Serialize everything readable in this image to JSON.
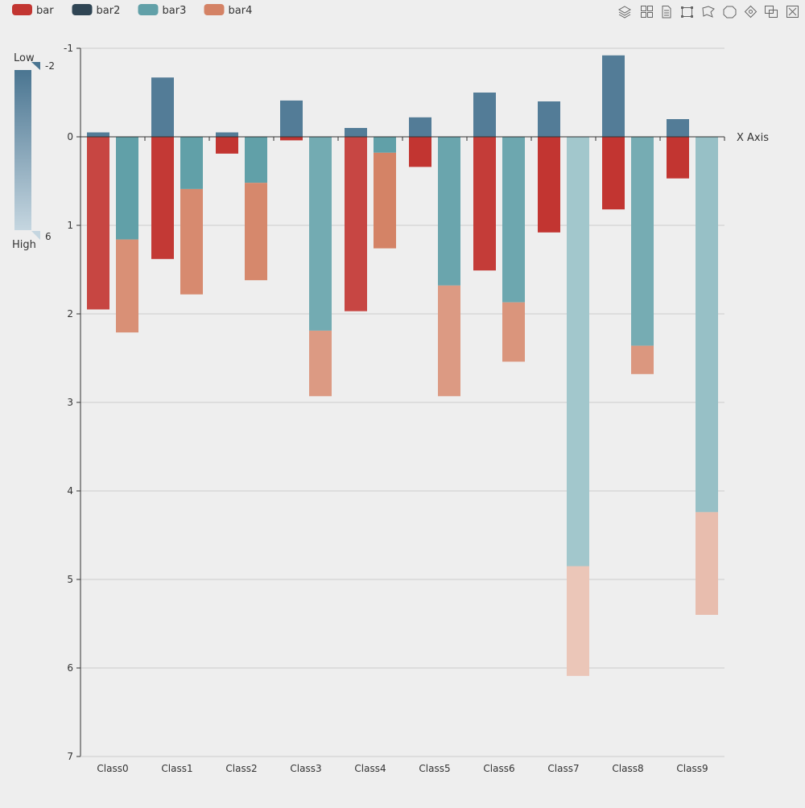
{
  "toolbox": {
    "tools": [
      {
        "icon": "layers-icon"
      },
      {
        "icon": "grid-icon"
      },
      {
        "icon": "document-icon"
      },
      {
        "icon": "rect-select-icon"
      },
      {
        "icon": "lasso-select-icon"
      },
      {
        "icon": "keep-select-icon"
      },
      {
        "icon": "clear-select-icon"
      },
      {
        "icon": "zoom-icon"
      },
      {
        "icon": "zoom-reset-icon"
      }
    ]
  },
  "visual_map": {
    "low_label": "Low",
    "high_label": "High",
    "min_value": "-2",
    "max_value": "6",
    "color_top": "#4a7591",
    "color_bottom": "#c5d6e0"
  },
  "chart_data": {
    "type": "bar",
    "x_axis_name": "X Axis",
    "categories": [
      "Class0",
      "Class1",
      "Class2",
      "Class3",
      "Class4",
      "Class5",
      "Class6",
      "Class7",
      "Class8",
      "Class9"
    ],
    "ylim": [
      -1,
      7
    ],
    "y_inverse": true,
    "y_ticks": [
      -1,
      0,
      1,
      2,
      3,
      4,
      5,
      6,
      7
    ],
    "grid": true,
    "legend_position": "top-left",
    "series": [
      {
        "name": "bar",
        "color": "#c23531",
        "stack": "one",
        "values": [
          1.95,
          1.38,
          0.19,
          0.04,
          1.97,
          0.34,
          1.51,
          1.08,
          0.82,
          0.47
        ]
      },
      {
        "name": "bar2",
        "color": "#2f4554",
        "stack": "one",
        "values": [
          -0.05,
          -0.67,
          -0.05,
          -0.41,
          -0.1,
          -0.22,
          -0.5,
          -0.4,
          -0.92,
          -0.2
        ]
      },
      {
        "name": "bar3",
        "color": "#61a0a8",
        "stack": "two",
        "values": [
          1.16,
          0.59,
          0.52,
          2.19,
          0.18,
          1.68,
          1.87,
          4.85,
          2.36,
          4.24
        ]
      },
      {
        "name": "bar4",
        "color": "#d48265",
        "stack": "two",
        "values": [
          1.05,
          1.19,
          1.1,
          0.74,
          1.08,
          1.25,
          0.67,
          1.24,
          0.32,
          1.16
        ]
      }
    ]
  }
}
